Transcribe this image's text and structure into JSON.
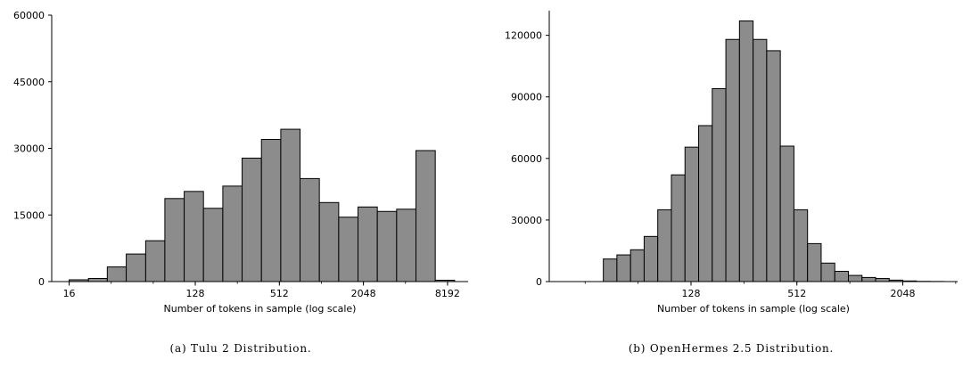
{
  "captions": {
    "a": "(a) Tulu 2 Distribution.",
    "b": "(b) OpenHermes 2.5 Distribution."
  },
  "chart_data": [
    {
      "type": "bar",
      "subtype": "histogram",
      "xlabel": "Number of tokens in sample (log scale)",
      "ylabel": "",
      "xscale": "log2",
      "xlim": [
        12,
        11500
      ],
      "ylim": [
        0,
        60000
      ],
      "xticks": [
        16,
        128,
        512,
        2048,
        8192
      ],
      "yticks": [
        0,
        15000,
        30000,
        45000,
        60000
      ],
      "bar_color": "#8c8c8c",
      "bin_edges": [
        16,
        22.0,
        30.0,
        41.0,
        56.5,
        77.5,
        106.6,
        146.5,
        201.5,
        277,
        381,
        524,
        720,
        990,
        1362,
        1872,
        2574,
        3540,
        4867,
        6693,
        9203
      ],
      "values": [
        400,
        700,
        3300,
        6200,
        9200,
        18700,
        20300,
        16500,
        21500,
        27800,
        32000,
        34300,
        23200,
        17800,
        14500,
        16800,
        15800,
        16300,
        29500,
        300
      ]
    },
    {
      "type": "bar",
      "subtype": "histogram",
      "xlabel": "Number of tokens in sample (log scale)",
      "ylabel": "",
      "xscale": "log2",
      "xlim": [
        20,
        4200
      ],
      "ylim": [
        0,
        132000
      ],
      "xticks": [
        128,
        512,
        2048
      ],
      "yticks": [
        0,
        30000,
        60000,
        90000,
        120000
      ],
      "bar_color": "#8c8c8c",
      "bin_edges": [
        40.6,
        48.5,
        58.0,
        69.3,
        82.8,
        99.0,
        118.3,
        141.4,
        169.0,
        202.0,
        241.4,
        288.5,
        344.8,
        412.1,
        492.5,
        588.6,
        703.5,
        840.8,
        1004.9,
        1201.0,
        1435.4,
        1715.5,
        2050.3,
        2450.4,
        2928.6,
        3500.0
      ],
      "values": [
        11000,
        13000,
        15500,
        22000,
        35000,
        52000,
        65500,
        76000,
        94000,
        118000,
        127000,
        118000,
        112500,
        66000,
        35000,
        18500,
        9000,
        5000,
        3000,
        2000,
        1500,
        700,
        300,
        100,
        50
      ]
    }
  ]
}
